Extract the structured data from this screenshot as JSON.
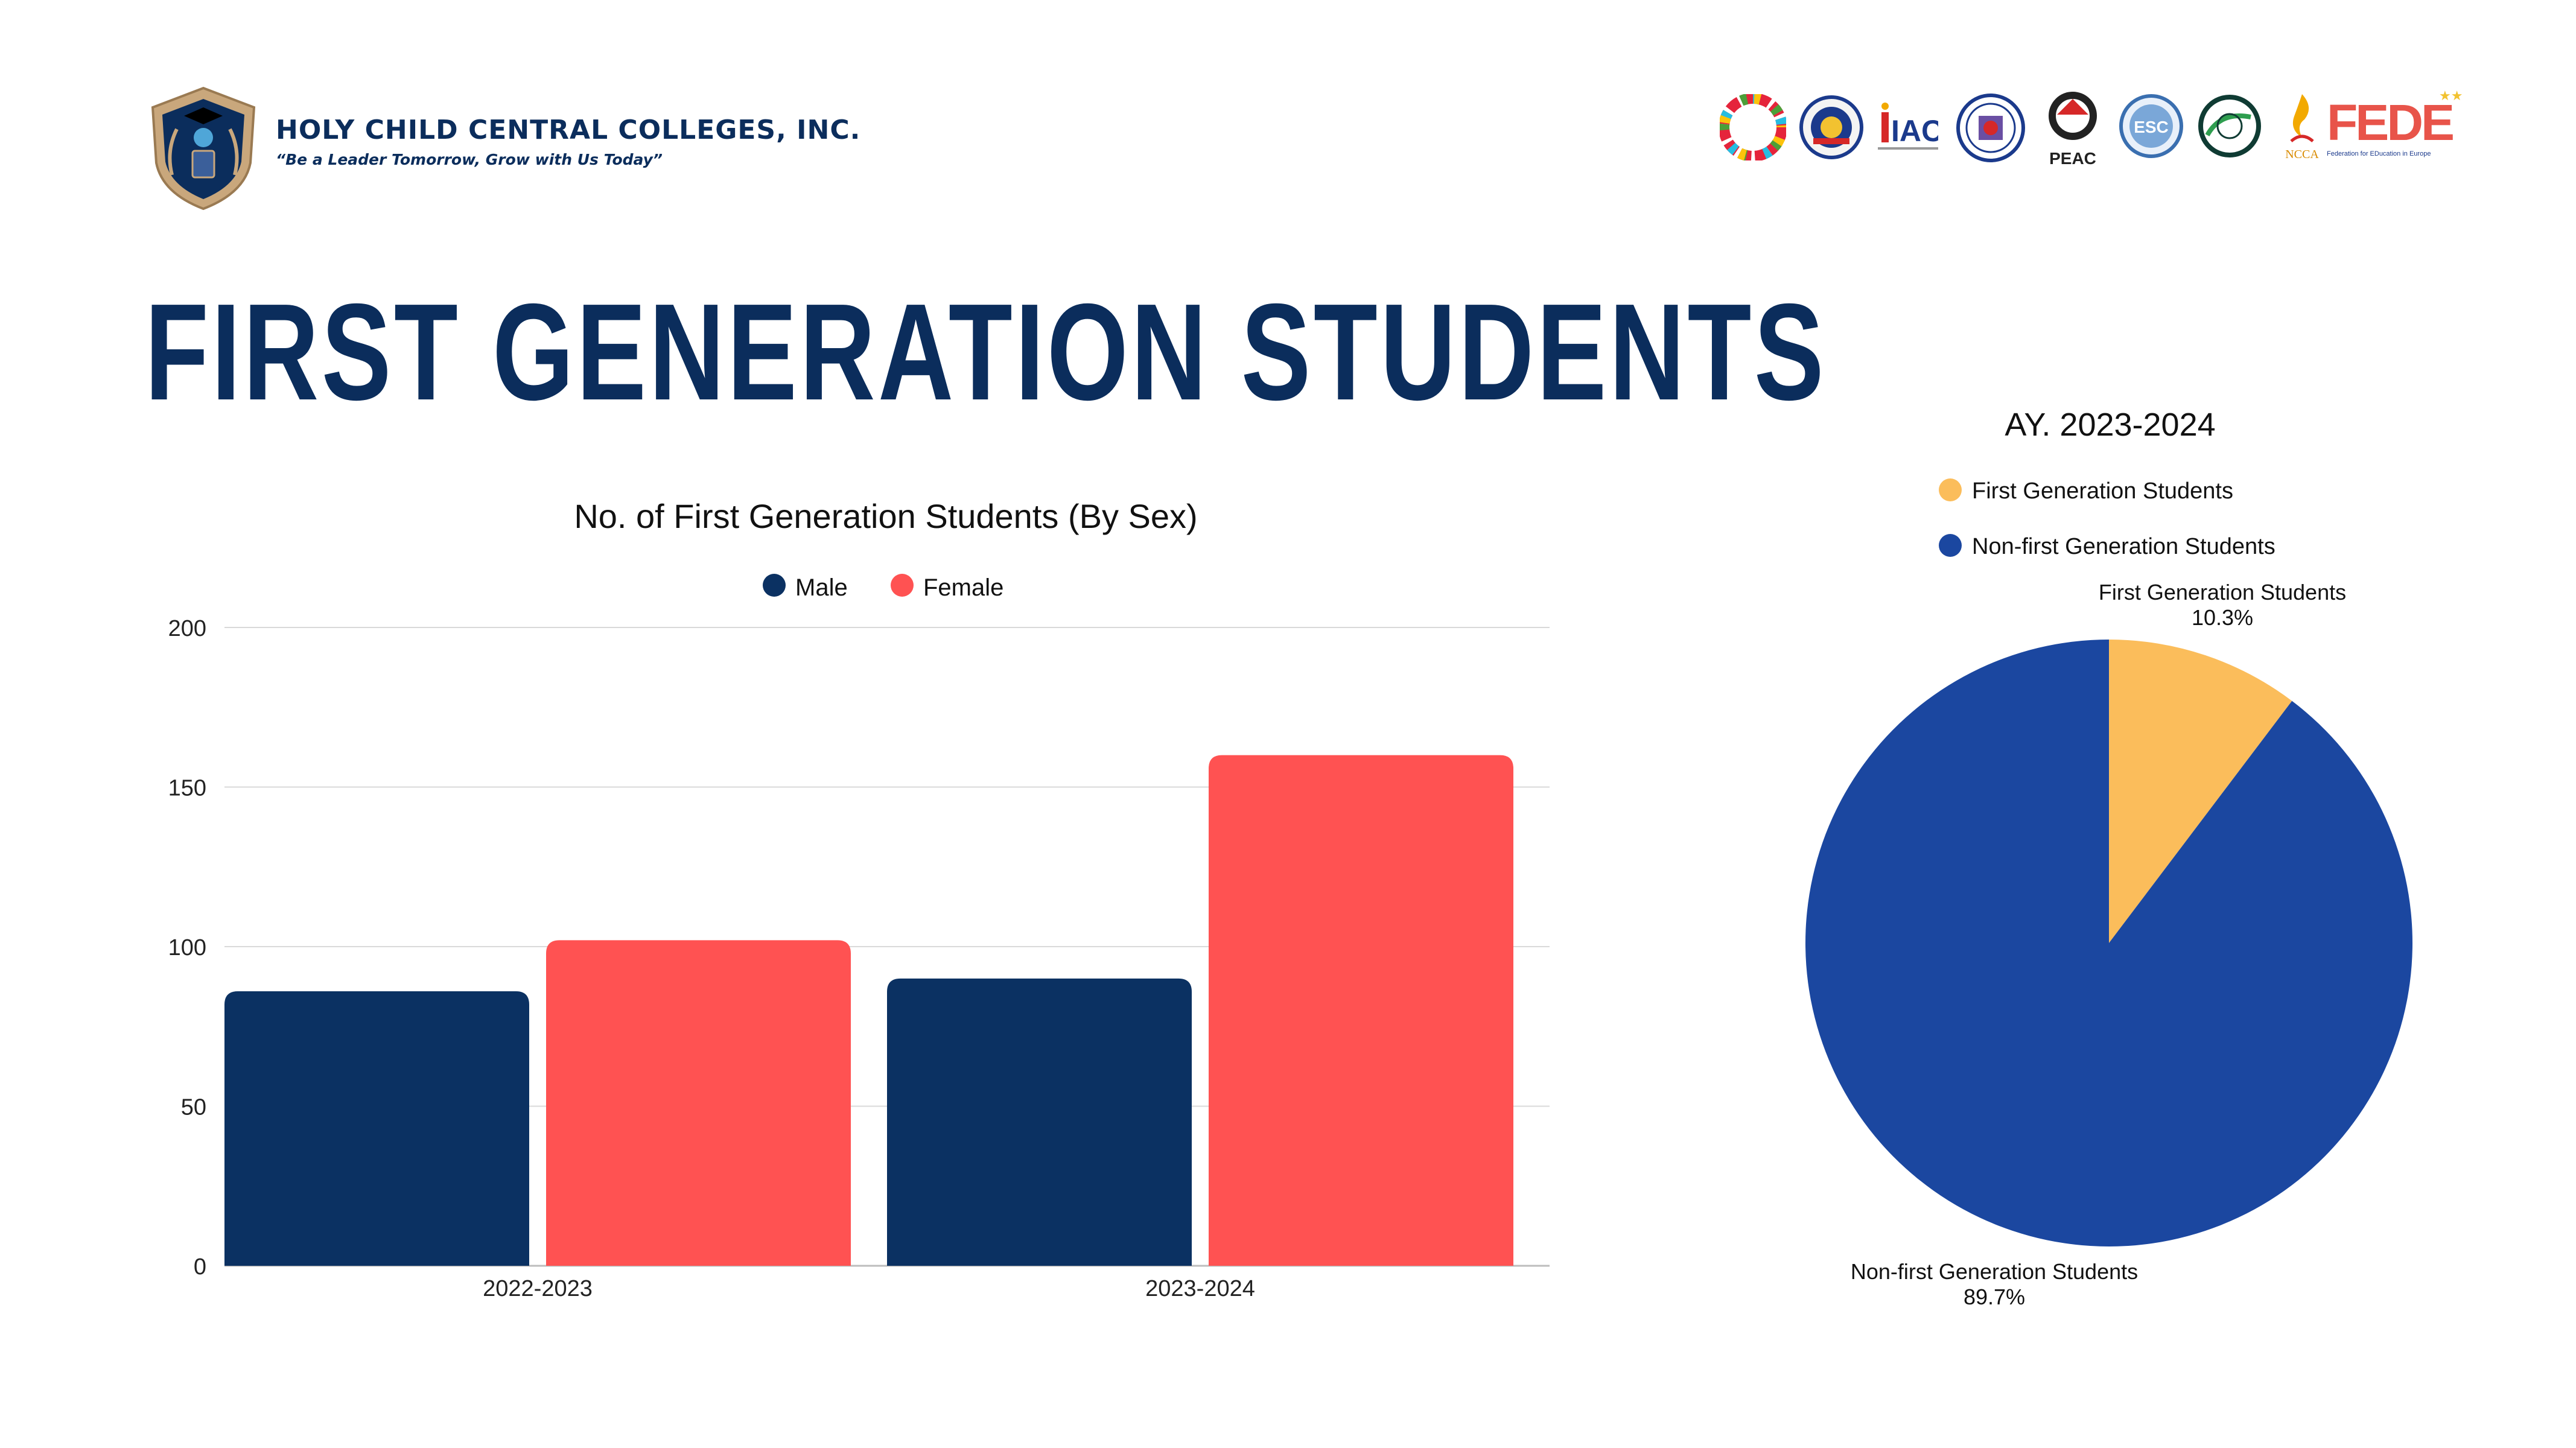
{
  "header": {
    "school_name": "HOLY CHILD CENTRAL COLLEGES, INC.",
    "motto": "“Be a Leader Tomorrow, Grow with Us Today”",
    "partner_logos": [
      {
        "icon": "sdg-wheel-icon"
      },
      {
        "icon": "seal-icon"
      },
      {
        "icon": "iac-logo-icon",
        "text": "IAC"
      },
      {
        "icon": "deped-seal-icon"
      },
      {
        "icon": "peac-logo-icon",
        "text": "PEAC"
      },
      {
        "icon": "esc-logo-icon",
        "text": "ESC"
      },
      {
        "icon": "eco-council-icon"
      },
      {
        "icon": "ncca-logo-icon",
        "text": "NCCA"
      },
      {
        "icon": "fede-logo-icon",
        "text": "FEDE",
        "subtext": "Federation for EDucation in Europe"
      }
    ]
  },
  "page_title": "FIRST GENERATION STUDENTS",
  "colors": {
    "navy": "#0b2d5c",
    "male": "#0b3162",
    "female": "#ff5252",
    "first_gen": "#fbbd5b",
    "non_first_gen": "#1b47a0"
  },
  "chart_data": [
    {
      "type": "bar",
      "title": "No. of First Generation Students (By Sex)",
      "categories": [
        "2022-2023",
        "2023-2024"
      ],
      "series": [
        {
          "name": "Male",
          "values": [
            86,
            90
          ]
        },
        {
          "name": "Female",
          "values": [
            102,
            160
          ]
        }
      ],
      "ylim": [
        0,
        200
      ],
      "yticks": [
        0,
        50,
        100,
        150,
        200
      ],
      "xlabel": "",
      "ylabel": "",
      "grid": true,
      "legend": "top-center"
    },
    {
      "type": "pie",
      "title": "AY. 2023-2024",
      "slices": [
        {
          "label": "First Generation Students",
          "value": 10.3,
          "display": "10.3%"
        },
        {
          "label": "Non-first Generation Students",
          "value": 89.7,
          "display": "89.7%"
        }
      ],
      "legend": "top-left"
    }
  ]
}
